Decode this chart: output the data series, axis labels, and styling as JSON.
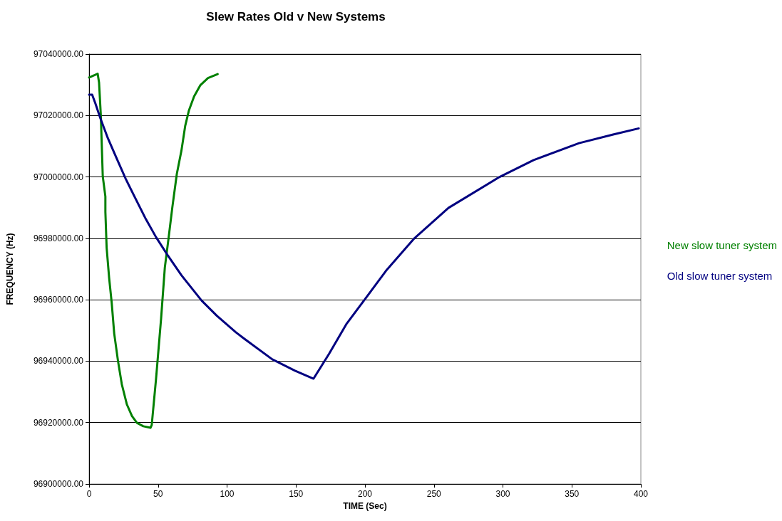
{
  "chart_data": {
    "type": "line",
    "title": "Slew Rates Old v New Systems",
    "xlabel": "TIME (Sec)",
    "ylabel": "FREQUENCY (Hz)",
    "xlim": [
      0,
      400
    ],
    "xticks": [
      0,
      50,
      100,
      150,
      200,
      250,
      300,
      350,
      400
    ],
    "ylim": [
      96900000,
      97040000
    ],
    "yticks": [
      {
        "value": 96900000,
        "label": "96900000.00"
      },
      {
        "value": 96920000,
        "label": "96920000.00"
      },
      {
        "value": 96940000,
        "label": "96940000.00"
      },
      {
        "value": 96960000,
        "label": "96960000.00"
      },
      {
        "value": 96980000,
        "label": "96980000.00"
      },
      {
        "value": 97000000,
        "label": "97000000.00"
      },
      {
        "value": 97020000,
        "label": "97020000.00"
      },
      {
        "value": 97040000,
        "label": "97040000.00"
      }
    ],
    "grid": "y",
    "legend": "right",
    "marker": "none",
    "line_style": "solid",
    "series": [
      {
        "name": "New slow tuner system",
        "color": "#008000",
        "x": [
          0,
          6.2,
          7.2,
          8.5,
          9.9,
          11.8,
          11.8,
          12.7,
          14.5,
          16.4,
          18.2,
          21,
          23.7,
          27.4,
          31.1,
          34.7,
          39.3,
          44.5,
          45.4,
          48.5,
          52.2,
          54.9,
          57.7,
          60.4,
          63.6,
          66.9,
          69.7,
          72.4,
          76.1,
          80.7,
          86.2,
          93.2
        ],
        "values": [
          97032400,
          97033600,
          97030800,
          97020000,
          97000200,
          96993600,
          96988600,
          96977000,
          96967200,
          96958900,
          96949000,
          96939900,
          96932500,
          96925900,
          96922100,
          96919900,
          96918800,
          96918300,
          96919200,
          96934100,
          96953900,
          96970500,
          96980400,
          96990300,
          97001000,
          97008500,
          97016700,
          97021700,
          97026200,
          97029900,
          97032200,
          97033500
        ]
      },
      {
        "name": "Old slow tuner system",
        "color": "#000080",
        "x": [
          0,
          2.2,
          4.4,
          8.1,
          13.6,
          20,
          26.5,
          32.9,
          41.2,
          48.5,
          56.8,
          66.9,
          81.6,
          92.6,
          106.4,
          112.2,
          132.8,
          149.3,
          162.7,
          174,
          186.4,
          199.7,
          215.2,
          235.8,
          260.5,
          297.6,
          322.3,
          355.2,
          379.9,
          398.5
        ],
        "values": [
          97026800,
          97026800,
          97024100,
          97019200,
          97012600,
          97006000,
          96999400,
          96993600,
          96986200,
          96980400,
          96974600,
          96968000,
          96959700,
          96954800,
          96949400,
          96947400,
          96940600,
          96936900,
          96934300,
          96942400,
          96952000,
          96960000,
          96969400,
          96980000,
          96989900,
          97000000,
          97005500,
          97011000,
          97013800,
          97015800
        ]
      }
    ]
  }
}
